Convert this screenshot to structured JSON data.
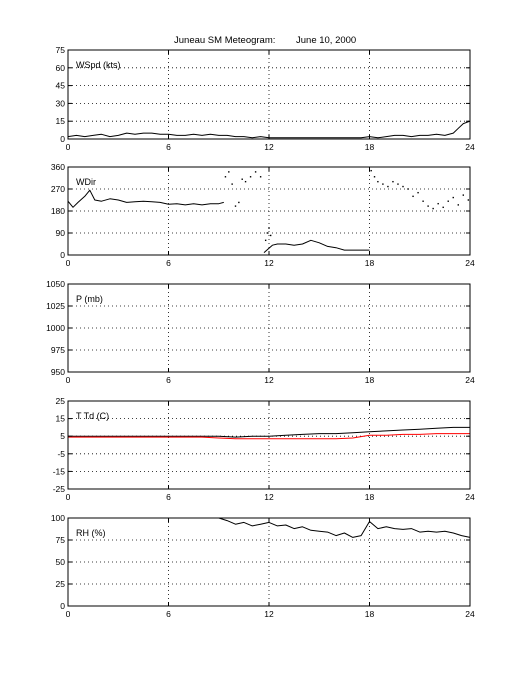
{
  "title": {
    "station": "Juneau SM Meteogram:",
    "date": "June 10, 2000"
  },
  "colors": {
    "primary_series": "#000000",
    "dewpoint_series": "#ff0000",
    "grid": "#000000",
    "background": "#ffffff"
  },
  "chart_data": [
    {
      "type": "line",
      "panel_label": "WSpd (kts)",
      "xlim": [
        0,
        24
      ],
      "ylim": [
        0,
        75
      ],
      "xticks": [
        0,
        6,
        12,
        18,
        24
      ],
      "yticks": [
        0,
        15,
        30,
        45,
        60,
        75
      ],
      "grid": true,
      "series": [
        {
          "color": "#000000",
          "style": "line",
          "x": [
            0,
            0.5,
            1,
            1.5,
            2,
            2.5,
            3,
            3.5,
            4,
            4.5,
            5,
            5.5,
            6,
            6.5,
            7,
            7.5,
            8,
            8.5,
            9,
            9.5,
            10,
            10.5,
            11,
            11.5,
            12,
            12.5,
            13,
            13.5,
            14,
            14.5,
            15,
            15.5,
            16,
            16.5,
            17,
            17.5,
            18,
            18.5,
            19,
            19.5,
            20,
            20.5,
            21,
            21.5,
            22,
            22.5,
            23,
            23.3,
            23.6,
            24
          ],
          "y": [
            2,
            3,
            2,
            3,
            4,
            2,
            3,
            5,
            4,
            5,
            5,
            4,
            4,
            3,
            3,
            4,
            3,
            4,
            3,
            3,
            2,
            2,
            1,
            2,
            1,
            1,
            1,
            1,
            1,
            1,
            1,
            1,
            1,
            1,
            1,
            1,
            2,
            1,
            2,
            3,
            3,
            2,
            3,
            3,
            4,
            3,
            5,
            9,
            13,
            15
          ]
        }
      ]
    },
    {
      "type": "scatter",
      "panel_label": "WDir",
      "xlim": [
        0,
        24
      ],
      "ylim": [
        0,
        360
      ],
      "xticks": [
        0,
        6,
        12,
        18,
        24
      ],
      "yticks": [
        0,
        90,
        180,
        270,
        360
      ],
      "grid": true,
      "series": [
        {
          "color": "#000000",
          "style": "line",
          "x": [
            0,
            0.3,
            0.6,
            1,
            1.3,
            1.6,
            2,
            2.5,
            3,
            3.5,
            4,
            4.5,
            5,
            5.5,
            6,
            6.5,
            7,
            7.5,
            8,
            8.5,
            9,
            9.3
          ],
          "y": [
            220,
            195,
            215,
            240,
            265,
            225,
            220,
            230,
            225,
            215,
            218,
            220,
            218,
            215,
            208,
            210,
            205,
            210,
            205,
            210,
            210,
            215
          ]
        },
        {
          "color": "#000000",
          "style": "line",
          "x": [
            11.7,
            12.2,
            12.5,
            13,
            13.5,
            14,
            14.5,
            15,
            15.5,
            16,
            16.5,
            17,
            17.5,
            18
          ],
          "y": [
            10,
            40,
            45,
            45,
            40,
            45,
            60,
            50,
            35,
            30,
            20,
            20,
            20,
            20
          ]
        },
        {
          "color": "#000000",
          "style": "points",
          "x": [
            9.4,
            9.6,
            9.8,
            10.0,
            10.2,
            10.4,
            10.6,
            10.9,
            11.2,
            11.5,
            11.8,
            11.9,
            12.0,
            12.1,
            18.1,
            18.3,
            18.5,
            18.8,
            19.1,
            19.4,
            19.7,
            20.0,
            20.3,
            20.6,
            20.9,
            21.2,
            21.5,
            21.8,
            22.1,
            22.4,
            22.7,
            23.0,
            23.3,
            23.6,
            23.9
          ],
          "y": [
            320,
            340,
            290,
            200,
            215,
            310,
            300,
            320,
            340,
            320,
            60,
            90,
            110,
            80,
            345,
            320,
            300,
            290,
            280,
            300,
            290,
            280,
            270,
            240,
            255,
            220,
            200,
            190,
            210,
            195,
            220,
            235,
            205,
            245,
            225
          ]
        }
      ]
    },
    {
      "type": "line",
      "panel_label": "P (mb)",
      "xlim": [
        0,
        24
      ],
      "ylim": [
        950,
        1050
      ],
      "xticks": [
        0,
        6,
        12,
        18,
        24
      ],
      "yticks": [
        950,
        975,
        1000,
        1025,
        1050
      ],
      "grid": true,
      "series": []
    },
    {
      "type": "line",
      "panel_label": "T Td (C)",
      "xlim": [
        0,
        24
      ],
      "ylim": [
        -25,
        25
      ],
      "xticks": [
        0,
        6,
        12,
        18,
        24
      ],
      "yticks": [
        -25,
        -15,
        -5,
        5,
        15,
        25
      ],
      "grid": true,
      "series": [
        {
          "color": "#000000",
          "style": "line",
          "x": [
            0,
            2,
            4,
            6,
            8,
            9,
            10,
            11,
            12,
            13,
            14,
            15,
            16,
            17,
            18,
            19,
            20,
            21,
            22,
            23,
            24
          ],
          "y": [
            5,
            5,
            5,
            5,
            5,
            5,
            4.5,
            5,
            5,
            5.5,
            6,
            6.5,
            6.5,
            7,
            7.5,
            8,
            8.5,
            9,
            9.5,
            10,
            10
          ]
        },
        {
          "color": "#ff0000",
          "style": "line",
          "x": [
            0,
            2,
            4,
            6,
            8,
            9,
            10,
            11,
            12,
            13,
            14,
            15,
            16,
            17,
            18,
            19,
            20,
            21,
            22,
            23,
            24
          ],
          "y": [
            4.5,
            4.5,
            4.5,
            4.5,
            4.5,
            4,
            3.5,
            3.5,
            3.5,
            3.5,
            3.5,
            3.5,
            3.5,
            4,
            5.5,
            5.5,
            6,
            6,
            6.5,
            6.5,
            6.5
          ]
        }
      ]
    },
    {
      "type": "line",
      "panel_label": "RH (%)",
      "xlim": [
        0,
        24
      ],
      "ylim": [
        0,
        100
      ],
      "xticks": [
        0,
        6,
        12,
        18,
        24
      ],
      "yticks": [
        0,
        25,
        50,
        75,
        100
      ],
      "grid": true,
      "series": [
        {
          "color": "#000000",
          "style": "line",
          "x": [
            0,
            1,
            2,
            3,
            4,
            5,
            6,
            7,
            8,
            9,
            9.5,
            10,
            10.5,
            11,
            11.5,
            12,
            12.5,
            13,
            13.5,
            14,
            14.5,
            15,
            15.5,
            16,
            16.5,
            17,
            17.5,
            18,
            18.5,
            19,
            19.5,
            20,
            20.5,
            21,
            21.5,
            22,
            22.5,
            23,
            23.5,
            24
          ],
          "y": [
            100,
            100,
            100,
            100,
            100,
            100,
            100,
            100,
            100,
            100,
            97,
            93,
            95,
            91,
            93,
            95,
            91,
            92,
            88,
            90,
            86,
            85,
            84,
            80,
            83,
            78,
            80,
            96,
            88,
            90,
            88,
            87,
            88,
            84,
            85,
            84,
            85,
            83,
            80,
            78
          ]
        }
      ]
    }
  ]
}
